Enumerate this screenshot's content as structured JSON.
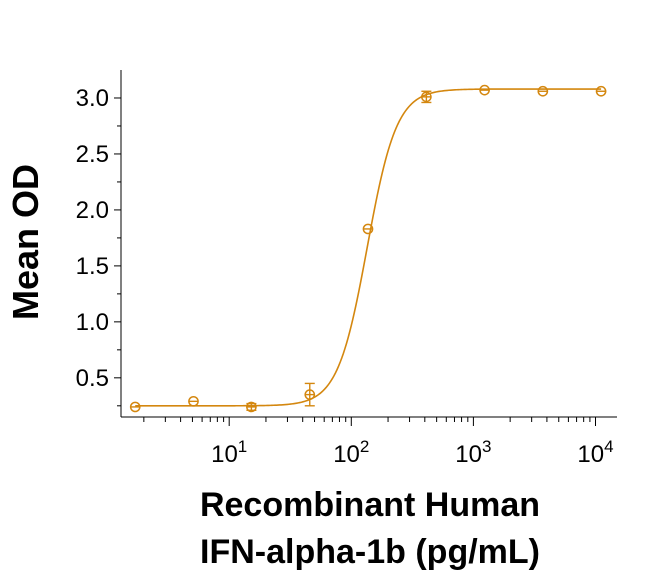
{
  "chart_data": {
    "type": "scatter",
    "xscale": "log",
    "xlim": [
      1.3,
      15000
    ],
    "ylim": [
      0.15,
      3.25
    ],
    "xlabel": [
      "Recombinant Human",
      "IFN-alpha-1b (pg/mL)"
    ],
    "ylabel": "Mean OD",
    "x_ticks": [
      {
        "value": 10,
        "base": "10",
        "exp": "1"
      },
      {
        "value": 100,
        "base": "10",
        "exp": "2"
      },
      {
        "value": 1000,
        "base": "10",
        "exp": "3"
      },
      {
        "value": 10000,
        "base": "10",
        "exp": "4"
      }
    ],
    "y_ticks": [
      {
        "value": 0.5,
        "label": "0.5"
      },
      {
        "value": 1.0,
        "label": "1.0"
      },
      {
        "value": 1.5,
        "label": "1.5"
      },
      {
        "value": 2.0,
        "label": "2.0"
      },
      {
        "value": 2.5,
        "label": "2.5"
      },
      {
        "value": 3.0,
        "label": "3.0"
      }
    ],
    "color": "#D4870F",
    "grid": false,
    "legend": "none",
    "series": [
      {
        "points": [
          {
            "x": 1.7,
            "y": 0.24,
            "err": 0.01
          },
          {
            "x": 5.1,
            "y": 0.29,
            "err": 0.01
          },
          {
            "x": 15.2,
            "y": 0.24,
            "err": 0.03
          },
          {
            "x": 45.7,
            "y": 0.35,
            "err": 0.1
          },
          {
            "x": 137,
            "y": 1.83,
            "err": 0.01
          },
          {
            "x": 412,
            "y": 3.01,
            "err": 0.05
          },
          {
            "x": 1235,
            "y": 3.07,
            "err": 0.01
          },
          {
            "x": 3704,
            "y": 3.06,
            "err": 0.01
          },
          {
            "x": 11111,
            "y": 3.06,
            "err": 0.01
          }
        ]
      }
    ],
    "fit": {
      "model": "4PL",
      "bottom": 0.25,
      "top": 3.08,
      "ec50": 135,
      "hill": 3.6
    }
  }
}
